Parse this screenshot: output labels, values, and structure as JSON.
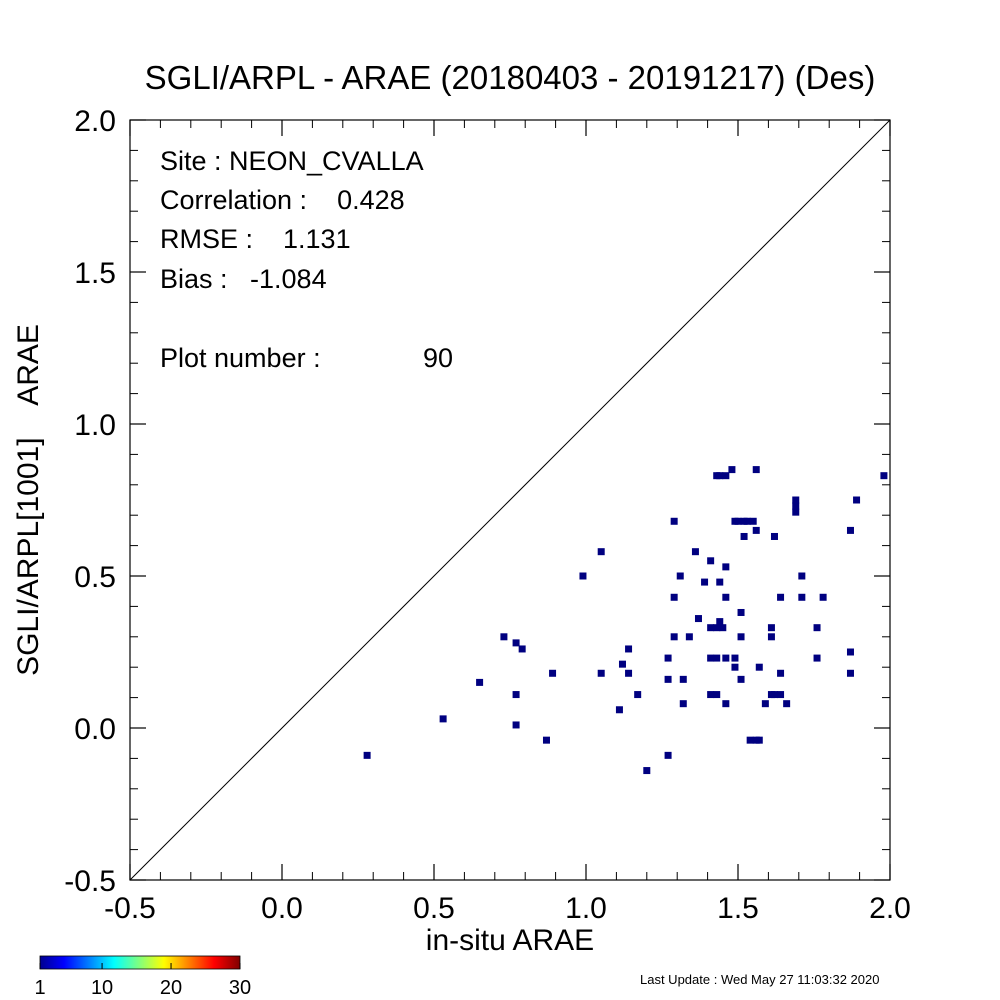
{
  "chart_data": {
    "type": "scatter",
    "title": "SGLI/ARPL - ARAE (20180403 - 20191217) (Des)",
    "xlabel": "in-situ ARAE",
    "ylabel": "SGLI/ARPL[1001]    ARAE",
    "xlim": [
      -0.5,
      2.0
    ],
    "ylim": [
      -0.5,
      2.0
    ],
    "x_ticks": [
      "-0.5",
      "0.0",
      "0.5",
      "1.0",
      "1.5",
      "2.0"
    ],
    "y_ticks": [
      "-0.5",
      "0.0",
      "0.5",
      "1.0",
      "1.5",
      "2.0"
    ],
    "reference_line": "1:1",
    "stats": {
      "site": "Site : NEON_CVALLA",
      "correlation": "Correlation :    0.428",
      "rmse": "RMSE :    1.131",
      "bias": "Bias :   -1.084",
      "plot_number": "Plot number :",
      "plot_number_value": "90"
    },
    "point_color": "#000080",
    "points": [
      [
        0.28,
        -0.09
      ],
      [
        0.53,
        0.03
      ],
      [
        0.65,
        0.15
      ],
      [
        0.73,
        0.3
      ],
      [
        0.77,
        0.28
      ],
      [
        0.77,
        0.11
      ],
      [
        0.77,
        0.01
      ],
      [
        0.79,
        0.26
      ],
      [
        0.87,
        -0.04
      ],
      [
        0.89,
        0.18
      ],
      [
        0.99,
        0.5
      ],
      [
        1.05,
        0.58
      ],
      [
        1.05,
        0.18
      ],
      [
        1.11,
        0.06
      ],
      [
        1.12,
        0.21
      ],
      [
        1.14,
        0.26
      ],
      [
        1.14,
        0.18
      ],
      [
        1.17,
        0.11
      ],
      [
        1.2,
        -0.14
      ],
      [
        1.27,
        -0.09
      ],
      [
        1.27,
        0.23
      ],
      [
        1.27,
        0.16
      ],
      [
        1.29,
        0.68
      ],
      [
        1.29,
        0.43
      ],
      [
        1.29,
        0.3
      ],
      [
        1.31,
        0.5
      ],
      [
        1.32,
        0.16
      ],
      [
        1.32,
        0.08
      ],
      [
        1.34,
        0.3
      ],
      [
        1.36,
        0.58
      ],
      [
        1.37,
        0.36
      ],
      [
        1.39,
        0.48
      ],
      [
        1.41,
        0.55
      ],
      [
        1.41,
        0.33
      ],
      [
        1.41,
        0.23
      ],
      [
        1.41,
        0.11
      ],
      [
        1.43,
        0.83
      ],
      [
        1.43,
        0.33
      ],
      [
        1.43,
        0.23
      ],
      [
        1.43,
        0.11
      ],
      [
        1.44,
        0.48
      ],
      [
        1.44,
        0.35
      ],
      [
        1.44,
        0.83
      ],
      [
        1.45,
        0.33
      ],
      [
        1.46,
        0.83
      ],
      [
        1.46,
        0.53
      ],
      [
        1.46,
        0.43
      ],
      [
        1.46,
        0.23
      ],
      [
        1.46,
        0.08
      ],
      [
        1.48,
        0.85
      ],
      [
        1.49,
        0.68
      ],
      [
        1.49,
        0.23
      ],
      [
        1.49,
        0.2
      ],
      [
        1.5,
        0.68
      ],
      [
        1.51,
        0.38
      ],
      [
        1.51,
        0.3
      ],
      [
        1.51,
        0.16
      ],
      [
        1.52,
        0.68
      ],
      [
        1.52,
        0.63
      ],
      [
        1.53,
        0.68
      ],
      [
        1.54,
        -0.04
      ],
      [
        1.55,
        0.68
      ],
      [
        1.56,
        -0.04
      ],
      [
        1.56,
        0.85
      ],
      [
        1.56,
        0.65
      ],
      [
        1.57,
        0.2
      ],
      [
        1.57,
        -0.04
      ],
      [
        1.59,
        0.08
      ],
      [
        1.61,
        0.33
      ],
      [
        1.61,
        0.3
      ],
      [
        1.61,
        0.11
      ],
      [
        1.62,
        0.11
      ],
      [
        1.62,
        0.63
      ],
      [
        1.64,
        0.43
      ],
      [
        1.64,
        0.18
      ],
      [
        1.64,
        0.11
      ],
      [
        1.66,
        0.08
      ],
      [
        1.69,
        0.75
      ],
      [
        1.69,
        0.73
      ],
      [
        1.69,
        0.71
      ],
      [
        1.71,
        0.5
      ],
      [
        1.71,
        0.43
      ],
      [
        1.76,
        0.33
      ],
      [
        1.76,
        0.23
      ],
      [
        1.78,
        0.43
      ],
      [
        1.87,
        0.65
      ],
      [
        1.87,
        0.25
      ],
      [
        1.87,
        0.18
      ],
      [
        1.89,
        0.75
      ],
      [
        1.98,
        0.83
      ]
    ],
    "colorbar": {
      "range": [
        1,
        30
      ],
      "tick_labels": [
        "1",
        "10",
        "20",
        "30"
      ],
      "colors": [
        "#00008f",
        "#0000ff",
        "#00ffff",
        "#ffff00",
        "#ff0000",
        "#800000"
      ]
    }
  },
  "footer": {
    "last_update": "Last Update : Wed May 27 11:03:32 2020"
  }
}
